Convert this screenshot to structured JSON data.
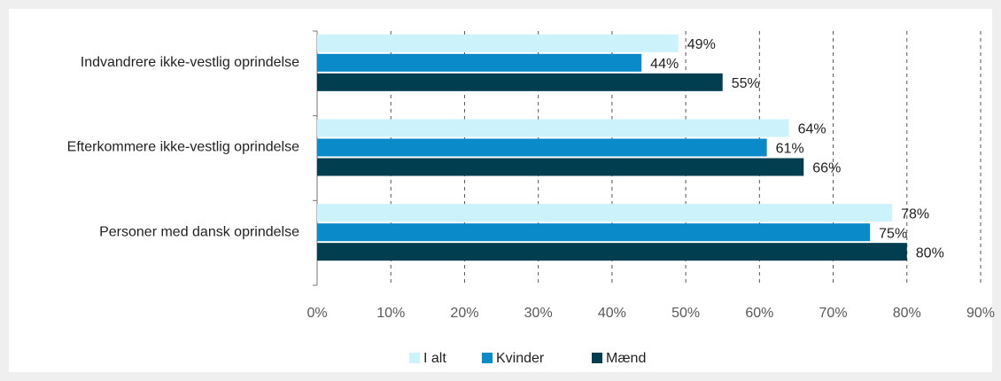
{
  "chart_data": {
    "type": "hbar",
    "categories": [
      "Indvandrere ikke-vestlig oprindelse",
      "Efterkommere ikke-vestlig oprindelse",
      "Personer med dansk oprindelse"
    ],
    "series": [
      {
        "name": "I alt",
        "color": "#ccf2fb",
        "values": [
          49,
          64,
          78
        ],
        "value_labels": [
          "49%",
          "64%",
          "78%"
        ]
      },
      {
        "name": "Kvinder",
        "color": "#0b8ac9",
        "values": [
          44,
          61,
          75
        ],
        "value_labels": [
          "44%",
          "61%",
          "75%"
        ]
      },
      {
        "name": "Mænd",
        "color": "#003e50",
        "values": [
          55,
          66,
          80
        ],
        "value_labels": [
          "55%",
          "66%",
          "80%"
        ]
      }
    ],
    "xlim": [
      0,
      90
    ],
    "xticks": [
      {
        "value": 0,
        "label": "0%"
      },
      {
        "value": 10,
        "label": "10%"
      },
      {
        "value": 20,
        "label": "20%"
      },
      {
        "value": 30,
        "label": "30%"
      },
      {
        "value": 40,
        "label": "40%"
      },
      {
        "value": 50,
        "label": "50%"
      },
      {
        "value": 60,
        "label": "60%"
      },
      {
        "value": 70,
        "label": "70%"
      },
      {
        "value": 80,
        "label": "80%"
      },
      {
        "value": 90,
        "label": "90%"
      }
    ],
    "grid": true,
    "legend": "bottom"
  }
}
